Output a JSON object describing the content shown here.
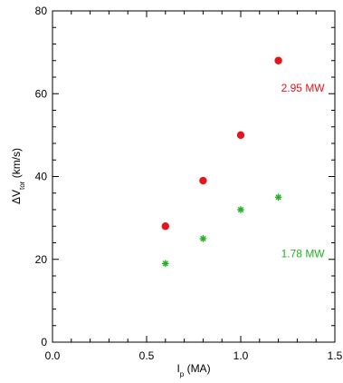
{
  "chart_data": {
    "type": "scatter",
    "xlim": [
      0.0,
      1.5
    ],
    "ylim": [
      0,
      80
    ],
    "x_ticks": [
      "0.0",
      "0.5",
      "1.0",
      "1.5"
    ],
    "y_ticks": [
      "0",
      "20",
      "40",
      "60",
      "80"
    ],
    "xlabel": {
      "main": "I",
      "sub": "p",
      "rest": " (MA)"
    },
    "ylabel": {
      "main": "ΔV",
      "sub": "tor",
      "rest": " (km/s)"
    },
    "grid": false,
    "series": [
      {
        "name": "2.95 MW",
        "color": "#e8141c",
        "marker": "circle",
        "points": [
          {
            "x": 0.6,
            "y": 28
          },
          {
            "x": 0.8,
            "y": 39
          },
          {
            "x": 1.0,
            "y": 50
          },
          {
            "x": 1.2,
            "y": 68
          }
        ]
      },
      {
        "name": "1.78 MW",
        "color": "#22b321",
        "marker": "asterisk",
        "points": [
          {
            "x": 0.6,
            "y": 19
          },
          {
            "x": 0.8,
            "y": 25
          },
          {
            "x": 1.0,
            "y": 32
          },
          {
            "x": 1.2,
            "y": 35
          }
        ]
      }
    ],
    "annotations": [
      {
        "text": "2.95 MW",
        "series": 0,
        "x": 1.33,
        "y": 60.5
      },
      {
        "text": "1.78 MW",
        "series": 1,
        "x": 1.33,
        "y": 20.5
      }
    ]
  }
}
